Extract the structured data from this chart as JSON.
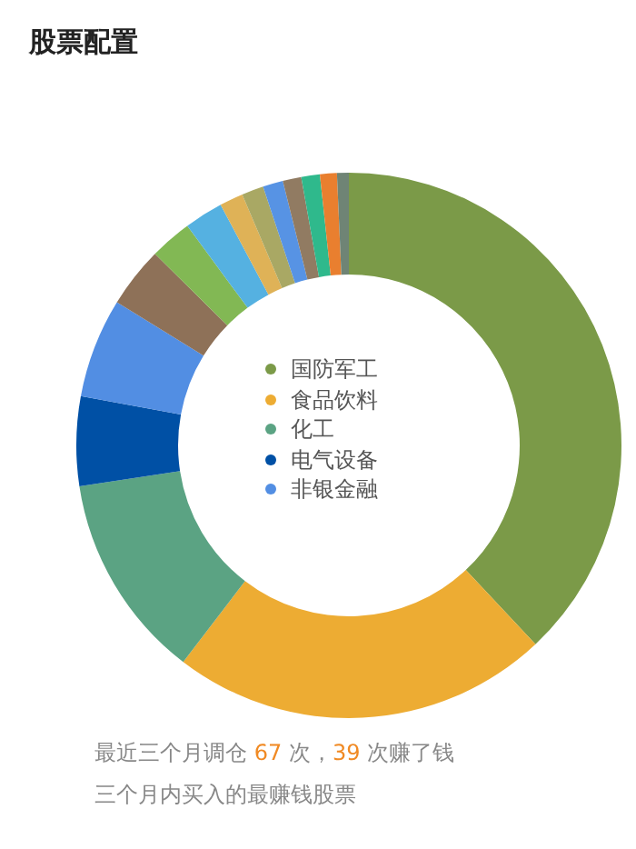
{
  "chart_data": {
    "type": "donut",
    "title": "股票配置",
    "categories": [
      "国防军工",
      "食品饮料",
      "化工",
      "电气设备",
      "非银金融",
      null,
      null,
      null,
      null,
      null,
      null,
      null,
      null,
      null,
      null
    ],
    "values": [
      38,
      22.4,
      12.2,
      5.3,
      5.9,
      3.6,
      2.5,
      2.3,
      1.4,
      1.3,
      1.2,
      1.1,
      1.1,
      1.0,
      0.7
    ],
    "colors": [
      "#7b9a48",
      "#edac33",
      "#5ba383",
      "#0050a5",
      "#528ee3",
      "#8e7158",
      "#82b854",
      "#55b1e1",
      "#dfb257",
      "#a9a864",
      "#5793e4",
      "#917b62",
      "#2fb98c",
      "#e97f2f",
      "#6f8475"
    ],
    "legend": "center",
    "annotations": [
      "最近三个月调仓 67 次，39 次赚了钱",
      "三个月内买入的最赚钱股票"
    ]
  }
}
